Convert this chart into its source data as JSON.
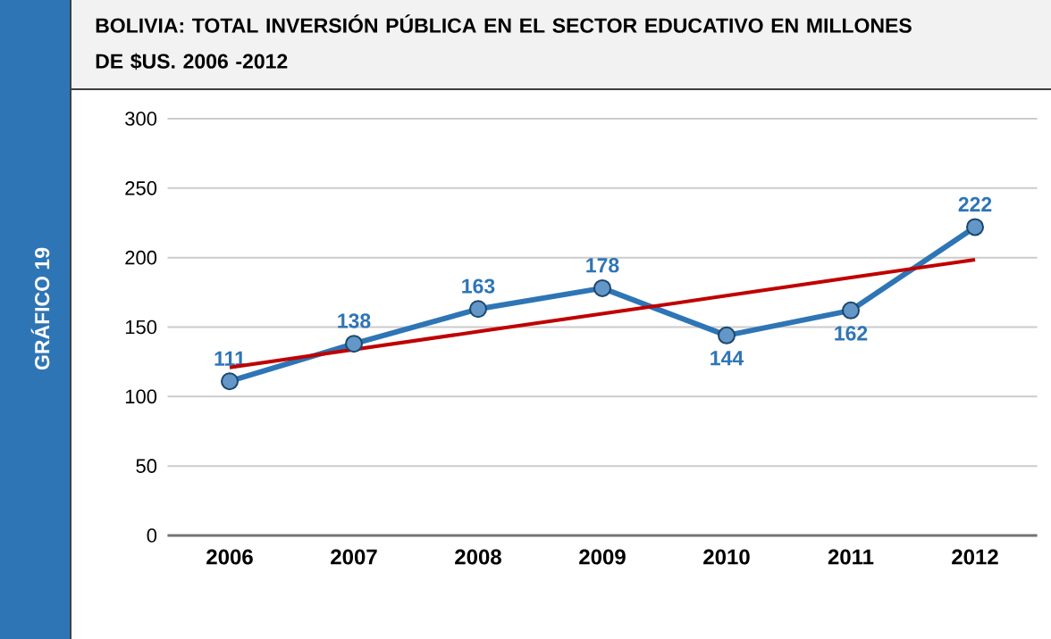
{
  "chart_data": {
    "type": "line",
    "title": "BOLIVIA: TOTAL INVERSIÓN PÚBLICA EN EL SECTOR EDUCATIVO EN MILLONES DE $US. 2006 -2012",
    "annotations": [
      "GRÁFICO 19"
    ],
    "categories": [
      "2006",
      "2007",
      "2008",
      "2009",
      "2010",
      "2011",
      "2012"
    ],
    "series": [
      {
        "color": "#2e75b6",
        "values": [
          111,
          138,
          163,
          178,
          144,
          162,
          222
        ],
        "marker": "circle",
        "value_labels": [
          "111",
          "138",
          "163",
          "178",
          "144",
          "162",
          "222"
        ]
      },
      {
        "type": "line",
        "color": "#c00000",
        "values": [
          120.9,
          null,
          146.8,
          159.7,
          172.6,
          185.6,
          198.5
        ],
        "marker": "none"
      }
    ],
    "ylim": [
      0,
      300
    ],
    "yticks": [
      0,
      50,
      100,
      150,
      200,
      250,
      300
    ],
    "grid": "y"
  }
}
